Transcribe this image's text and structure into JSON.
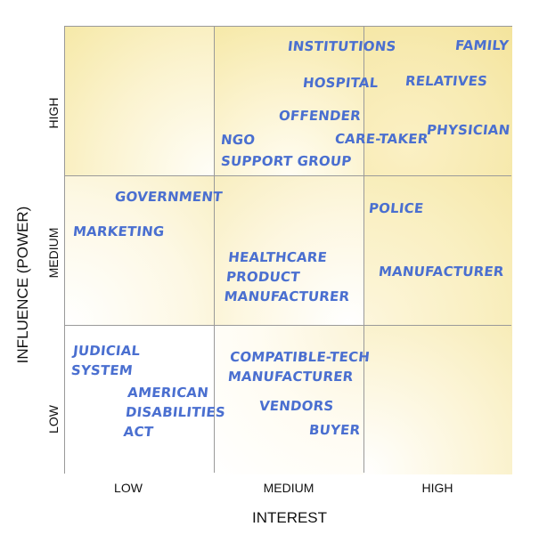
{
  "axes": {
    "x_title": "INTEREST",
    "y_title": "INFLUENCE (POWER)",
    "x_levels": [
      "LOW",
      "MEDIUM",
      "HIGH"
    ],
    "y_levels": [
      "HIGH",
      "MEDIUM",
      "LOW"
    ]
  },
  "stakeholders": {
    "institutions": "INSTITUTIONS",
    "family": "FAMILY",
    "hospital": "HOSPITAL",
    "relatives": "RELATIVES",
    "offender": "OFFENDER",
    "physician": "PHYSICIAN",
    "ngo": "NGO",
    "care_taker": "CARE-TAKER",
    "support_group": "SUPPORT GROUP",
    "government": "GOVERNMENT",
    "police": "POLICE",
    "marketing": "MARKETING",
    "healthcare_1": "HEALTHCARE",
    "healthcare_2": "PRODUCT",
    "healthcare_3": "MANUFACTURER",
    "manufacturer": "MANUFACTURER",
    "judicial_1": "JUDICIAL",
    "judicial_2": "SYSTEM",
    "compatible_1": "COMPATIBLE-TECH",
    "compatible_2": "MANUFACTURER",
    "ada_1": "AMERICAN",
    "ada_2": "DISABILITIES",
    "ada_3": "ACT",
    "vendors": "VENDORS",
    "buyer": "BUYER"
  },
  "colors": {
    "label_text": "#4a6fd0",
    "cell_highlight": "#f6e9a8",
    "grid_line": "#9a9a9a"
  }
}
